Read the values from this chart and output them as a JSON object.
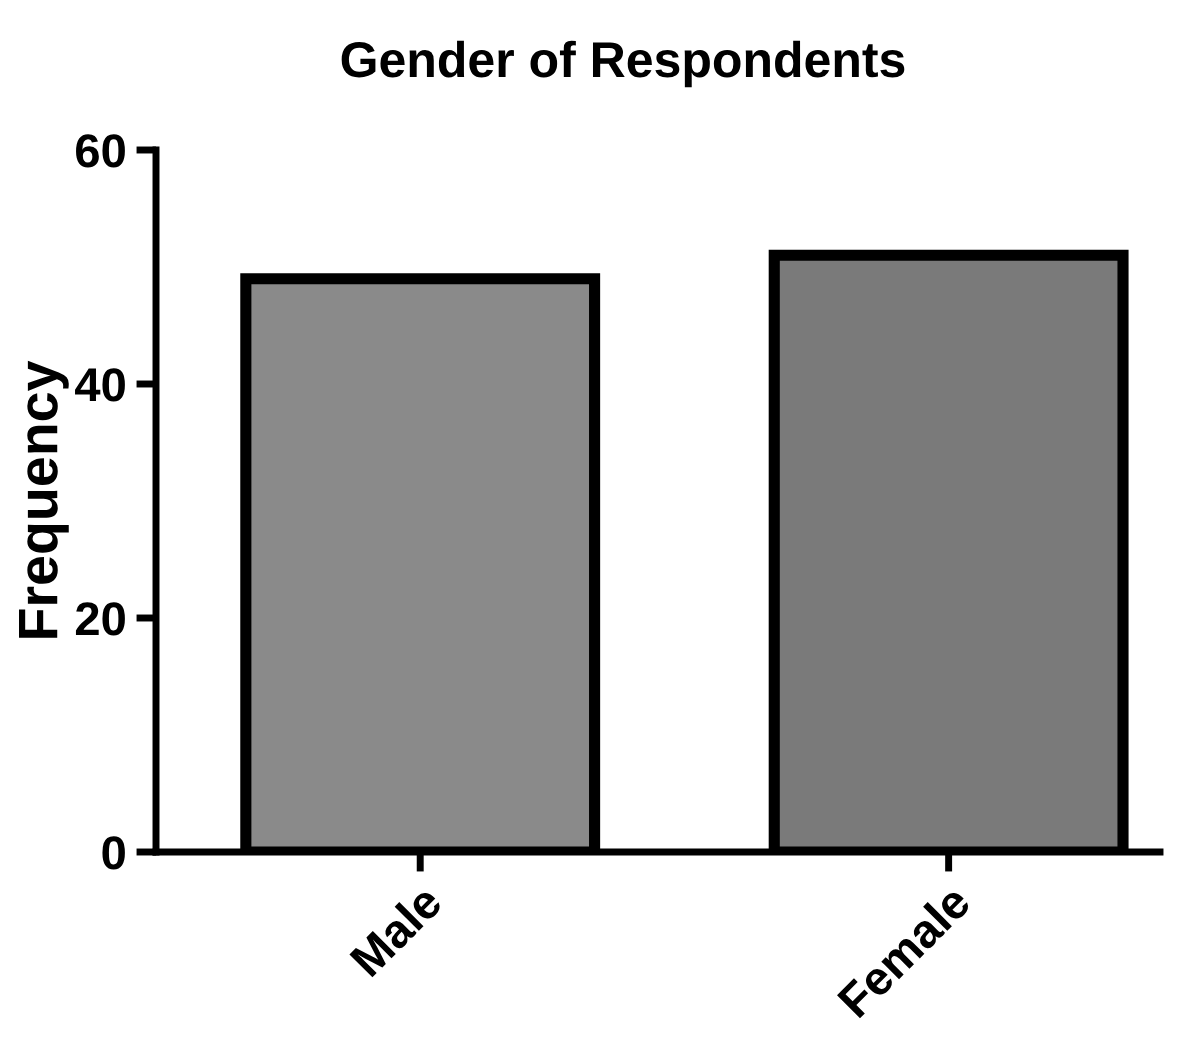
{
  "chart_data": {
    "type": "bar",
    "title": "Gender of Respondents",
    "ylabel": "Frequency",
    "categories": [
      "Male",
      "Female"
    ],
    "values": [
      49,
      51
    ],
    "colors": [
      "#8a8a8a",
      "#7a7a7a"
    ],
    "ylim": [
      0,
      60
    ],
    "yticks": [
      0,
      20,
      40,
      60
    ],
    "grid": false,
    "legend": false
  }
}
